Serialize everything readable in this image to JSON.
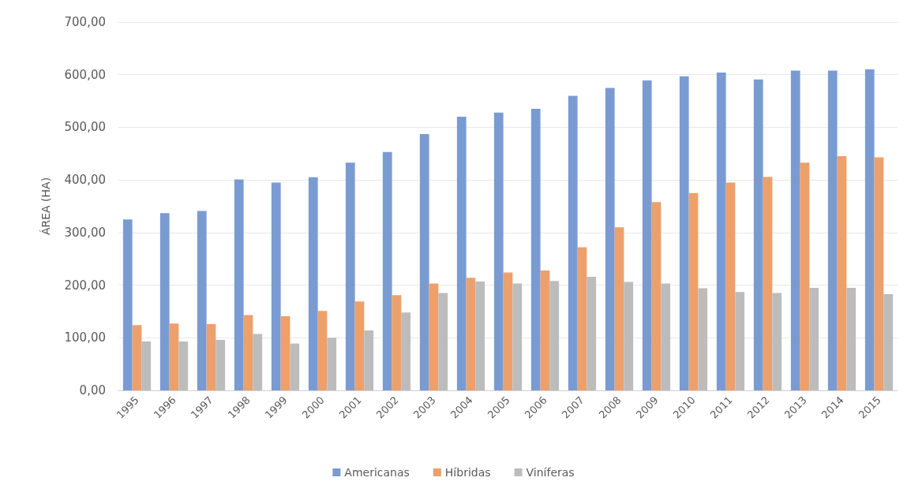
{
  "chart_data": {
    "type": "bar",
    "ylabel": "ÁREA (HA)",
    "categories": [
      "1995",
      "1996",
      "1997",
      "1998",
      "1999",
      "2000",
      "2001",
      "2002",
      "2003",
      "2004",
      "2005",
      "2006",
      "2007",
      "2008",
      "2009",
      "2010",
      "2011",
      "2012",
      "2013",
      "2014",
      "2015"
    ],
    "series": [
      {
        "name": "Americanas",
        "color": "#7a9bd2",
        "values": [
          325,
          337,
          341,
          401,
          395,
          405,
          433,
          453,
          487,
          520,
          528,
          535,
          560,
          575,
          589,
          597,
          604,
          591,
          608,
          608,
          610
        ]
      },
      {
        "name": "Híbridas",
        "color": "#eda06b",
        "values": [
          124,
          127,
          126,
          143,
          141,
          151,
          169,
          181,
          203,
          214,
          224,
          228,
          272,
          310,
          358,
          375,
          395,
          406,
          433,
          445,
          443
        ]
      },
      {
        "name": "Viníferas",
        "color": "#bcbcbc",
        "values": [
          93,
          93,
          96,
          107,
          89,
          100,
          114,
          148,
          185,
          207,
          203,
          208,
          216,
          206,
          203,
          194,
          187,
          185,
          195,
          195,
          183
        ]
      }
    ],
    "ylim": [
      0,
      700
    ],
    "yticks": [
      {
        "value": 0,
        "label": "0,00"
      },
      {
        "value": 100,
        "label": "100,00"
      },
      {
        "value": 200,
        "label": "200,00"
      },
      {
        "value": 300,
        "label": "300,00"
      },
      {
        "value": 400,
        "label": "400,00"
      },
      {
        "value": 500,
        "label": "500,00"
      },
      {
        "value": 600,
        "label": "600,00"
      },
      {
        "value": 700,
        "label": "700,00"
      }
    ],
    "grid": "y",
    "legend": "bottom"
  }
}
